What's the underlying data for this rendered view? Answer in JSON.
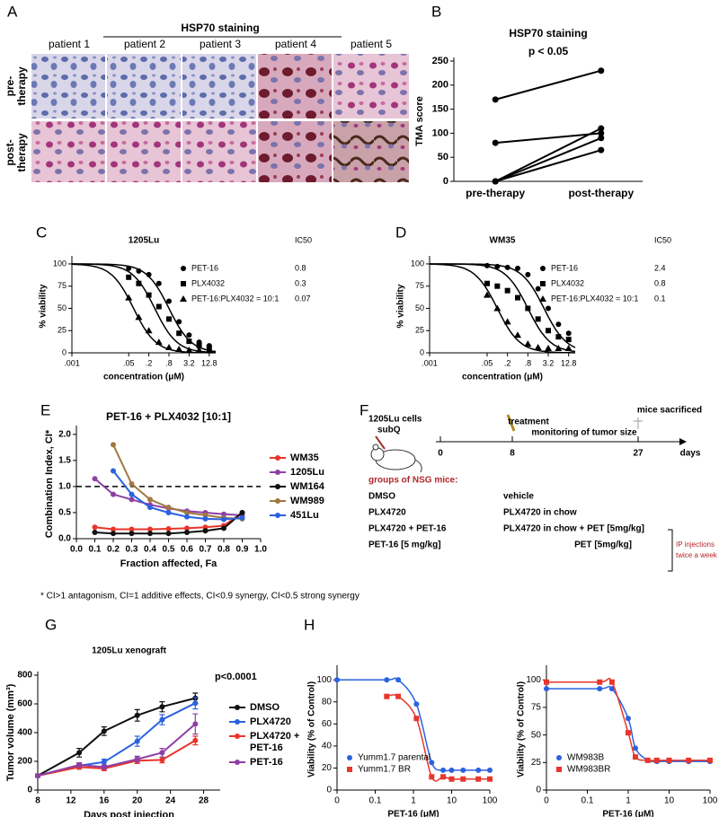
{
  "panel_labels": [
    "A",
    "B",
    "C",
    "D",
    "E",
    "F",
    "G",
    "H"
  ],
  "panel_a": {
    "title": "HSP70 staining",
    "columns": [
      "patient 1",
      "patient 2",
      "patient 3",
      "patient 4",
      "patient 5"
    ],
    "rows": [
      [
        "pre-",
        "therapy"
      ],
      [
        "post-",
        "therapy"
      ]
    ]
  },
  "panel_f": {
    "cells_label": [
      "1205Lu cells",
      "subQ"
    ],
    "treatment": "treatment",
    "monitoring": "monitoring of tumor size",
    "sacrificed": "mice sacrificed",
    "timeline": [
      0,
      8,
      27
    ],
    "unit": "days",
    "groups_title": "groups of NSG mice:",
    "groups": [
      [
        "DMSO",
        "vehicle"
      ],
      [
        "PLX4720",
        "PLX4720 in chow"
      ],
      [
        "PLX4720 + PET-16",
        "PLX4720 in chow + PET [5mg/kg]"
      ],
      [
        "PET-16 [5 mg/kg]",
        "PET [5mg/kg]"
      ]
    ],
    "injection_note": [
      "IP injections",
      "twice a week"
    ]
  },
  "footnote": "* CI>1 antagonism, CI=1 additive effects, CI<0.9 synergy, CI<0.5 strong synergy",
  "chart_data": [
    {
      "type": "paired",
      "title": "HSP70 staining",
      "annotation": "p < 0.05",
      "ylabel": "TMA score",
      "categories": [
        "pre-therapy",
        "post-therapy"
      ],
      "ylim": [
        0,
        250
      ],
      "yticks": [
        0,
        50,
        100,
        150,
        200,
        250
      ],
      "color": "#000000",
      "series": [
        {
          "values": [
            170,
            230
          ]
        },
        {
          "values": [
            80,
            100
          ]
        },
        {
          "values": [
            0,
            110
          ]
        },
        {
          "values": [
            0,
            90
          ]
        },
        {
          "values": [
            0,
            65
          ]
        }
      ]
    },
    {
      "type": "dose_response",
      "title": "1205Lu",
      "legend_title": "IC50",
      "legend": "upper right",
      "xlabel": "concentration (μM)",
      "ylabel": "% viability",
      "log_x": true,
      "xlim": [
        0.001,
        20
      ],
      "xticks": [
        {
          "value": 0.001,
          "label": ".001"
        },
        {
          "value": 0.05,
          "label": ".05"
        },
        {
          "value": 0.2,
          "label": ".2"
        },
        {
          "value": 0.8,
          "label": ".8"
        },
        3.2,
        12.8
      ],
      "ylim": [
        0,
        105
      ],
      "yticks": [
        0,
        25,
        50,
        75,
        100
      ],
      "x": [
        0.05,
        0.1,
        0.2,
        0.4,
        0.8,
        1.6,
        3.2,
        6.4,
        12.8
      ],
      "series": [
        {
          "name": "PET-16",
          "marker": "circle",
          "color": "#000000",
          "ic50": 0.8,
          "values": [
            95,
            92,
            88,
            78,
            58,
            35,
            20,
            12,
            8
          ]
        },
        {
          "name": "PLX4032",
          "marker": "square",
          "color": "#000000",
          "ic50": 0.3,
          "values": [
            85,
            78,
            65,
            52,
            38,
            22,
            13,
            8,
            6
          ]
        },
        {
          "name": "PET-16:PLX4032 = 10:1",
          "marker": "triangle",
          "color": "#000000",
          "ic50": 0.07,
          "values": [
            62,
            40,
            25,
            12,
            6,
            4,
            3,
            3,
            3
          ]
        }
      ]
    },
    {
      "type": "dose_response",
      "title": "WM35",
      "legend_title": "IC50",
      "legend": "upper right",
      "xlabel": "concentration (μM)",
      "ylabel": "% viability",
      "log_x": true,
      "xlim": [
        0.001,
        20
      ],
      "xticks": [
        {
          "value": 0.001,
          "label": ".001"
        },
        {
          "value": 0.05,
          "label": ".05"
        },
        {
          "value": 0.2,
          "label": ".2"
        },
        {
          "value": 0.8,
          "label": ".8"
        },
        3.2,
        12.8
      ],
      "ylim": [
        0,
        105
      ],
      "yticks": [
        0,
        25,
        50,
        75,
        100
      ],
      "x": [
        0.05,
        0.1,
        0.2,
        0.4,
        0.8,
        1.6,
        3.2,
        6.4,
        12.8
      ],
      "series": [
        {
          "name": "PET-16",
          "marker": "circle",
          "color": "#000000",
          "ic50": 2.4,
          "values": [
            98,
            97,
            96,
            95,
            88,
            72,
            50,
            32,
            22
          ]
        },
        {
          "name": "PLX4032",
          "marker": "square",
          "color": "#000000",
          "ic50": 0.8,
          "values": [
            78,
            75,
            70,
            62,
            50,
            38,
            25,
            18,
            15
          ]
        },
        {
          "name": "PET-16:PLX4032 = 10:1",
          "marker": "triangle",
          "color": "#000000",
          "ic50": 0.1,
          "values": [
            65,
            50,
            35,
            20,
            10,
            6,
            5,
            5,
            5
          ]
        }
      ]
    },
    {
      "type": "line",
      "title": "PET-16 + PLX4032 [10:1]",
      "legend": "right",
      "xlabel": "Fraction affected, Fa",
      "ylabel": "Combination Index, CI*",
      "xlim": [
        0,
        1
      ],
      "xticks": [
        {
          "value": 0,
          "label": "0.0"
        },
        0.1,
        0.2,
        0.3,
        0.4,
        0.5,
        0.6,
        0.7,
        0.8,
        0.9,
        {
          "value": 1,
          "label": "1.0"
        }
      ],
      "ylim": [
        0,
        2.1
      ],
      "yticks": [
        {
          "value": 0,
          "label": "0.0"
        },
        0.5,
        {
          "value": 1,
          "label": "1.0"
        },
        1.5,
        {
          "value": 2,
          "label": "2.0"
        }
      ],
      "reference_line": 1,
      "x": [
        0.1,
        0.2,
        0.3,
        0.4,
        0.5,
        0.6,
        0.7,
        0.8,
        0.9
      ],
      "series": [
        {
          "name": "WM35",
          "color": "#e8362b",
          "values": [
            0.22,
            0.18,
            0.18,
            0.18,
            0.19,
            0.2,
            0.22,
            0.25,
            0.5
          ]
        },
        {
          "name": "1205Lu",
          "color": "#8e3fa3",
          "values": [
            1.15,
            0.85,
            0.75,
            0.65,
            0.58,
            0.53,
            0.5,
            0.47,
            0.45
          ]
        },
        {
          "name": "WM164",
          "color": "#111111",
          "values": [
            0.12,
            0.1,
            0.1,
            0.1,
            0.1,
            0.12,
            0.15,
            0.2,
            0.5
          ]
        },
        {
          "name": "WM989",
          "color": "#a07840",
          "values": [
            null,
            1.8,
            1.05,
            0.75,
            0.6,
            0.5,
            0.45,
            0.4,
            0.38
          ]
        },
        {
          "name": "451Lu",
          "color": "#2a62e0",
          "values": [
            null,
            1.3,
            0.85,
            0.6,
            0.5,
            0.42,
            0.38,
            0.37,
            0.4
          ]
        }
      ]
    },
    {
      "type": "line",
      "title": "1205Lu xenograft",
      "annotation": "p<0.0001",
      "legend": "right",
      "xlabel": "Days post injection",
      "ylabel": "Tumor volume (mm³)",
      "xlim": [
        8,
        30
      ],
      "xticks": [
        8,
        12,
        16,
        20,
        24,
        28
      ],
      "ylim": [
        0,
        800
      ],
      "yticks": [
        0,
        200,
        400,
        600,
        800
      ],
      "x": [
        8,
        13,
        16,
        20,
        23,
        27
      ],
      "series": [
        {
          "name": "DMSO",
          "color": "#111111",
          "values": [
            100,
            260,
            410,
            520,
            580,
            640
          ],
          "errors": [
            10,
            30,
            30,
            40,
            35,
            35
          ]
        },
        {
          "name": "PLX4720",
          "color": "#2a62e0",
          "values": [
            100,
            170,
            195,
            340,
            490,
            605
          ],
          "errors": [
            10,
            15,
            20,
            35,
            35,
            40
          ]
        },
        {
          "name": "PLX4720 + PET-16",
          "color": "#e8362b",
          "values": [
            100,
            160,
            150,
            205,
            210,
            345
          ],
          "errors": [
            10,
            15,
            15,
            20,
            20,
            30
          ]
        },
        {
          "name": "PET-16",
          "color": "#8e3fa3",
          "values": [
            100,
            175,
            160,
            215,
            260,
            460
          ],
          "errors": [
            10,
            15,
            15,
            20,
            30,
            70
          ]
        }
      ]
    },
    {
      "type": "dose_response",
      "legend": "lower left",
      "xlabel": "PET-16 (μM)",
      "ylabel": "Viability (% of Control)",
      "log_x": true,
      "xlim": [
        0,
        100
      ],
      "xticks": [
        0,
        0.1,
        1,
        10,
        100
      ],
      "ylim": [
        0,
        110
      ],
      "yticks": [
        0,
        20,
        40,
        60,
        80,
        100
      ],
      "x": [
        0,
        0.2,
        0.4,
        1.2,
        3,
        6,
        10,
        20,
        50,
        100
      ],
      "series": [
        {
          "name": "Yumm1.7 parental",
          "marker": "circle",
          "color": "#2a62e0",
          "values": [
            100,
            100,
            100,
            78,
            25,
            18,
            18,
            18,
            18,
            18
          ]
        },
        {
          "name": "Yumm1.7 BR",
          "marker": "square",
          "color": "#e8362b",
          "values": [
            null,
            85,
            85,
            65,
            12,
            12,
            10,
            10,
            10,
            10
          ]
        }
      ]
    },
    {
      "type": "dose_response",
      "legend": "lower left",
      "xlabel": "PET-16 (μM)",
      "ylabel": "Viability (% of Control)",
      "log_x": true,
      "xlim": [
        0,
        100
      ],
      "xticks": [
        0,
        0.1,
        1,
        10,
        100
      ],
      "ylim": [
        0,
        110
      ],
      "yticks": [
        0,
        25,
        50,
        75,
        100
      ],
      "x": [
        0,
        0.2,
        0.4,
        1,
        1.5,
        3,
        5,
        10,
        30,
        100
      ],
      "series": [
        {
          "name": "WM983B",
          "marker": "circle",
          "color": "#2a62e0",
          "values": [
            92,
            92,
            92,
            65,
            38,
            27,
            26,
            26,
            26,
            26
          ]
        },
        {
          "name": "WM983BR",
          "marker": "square",
          "color": "#e8362b",
          "values": [
            98,
            98,
            98,
            52,
            30,
            27,
            27,
            27,
            27,
            27
          ]
        }
      ]
    }
  ]
}
